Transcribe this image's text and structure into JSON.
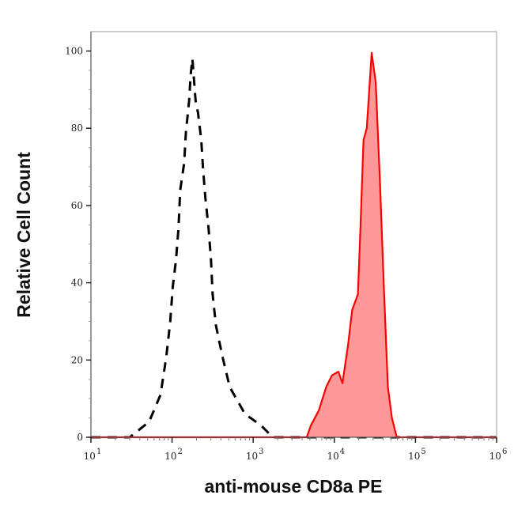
{
  "chart_data": {
    "type": "area",
    "title": "",
    "xlabel": "anti-mouse CD8a PE",
    "ylabel": "Relative Cell Count",
    "xscale": "log",
    "xlim": [
      10,
      1000000
    ],
    "ylim": [
      0,
      100
    ],
    "x_ticks": [
      {
        "base": "10",
        "exp": "1"
      },
      {
        "base": "10",
        "exp": "2"
      },
      {
        "base": "10",
        "exp": "3"
      },
      {
        "base": "10",
        "exp": "4"
      },
      {
        "base": "10",
        "exp": "5"
      },
      {
        "base": "10",
        "exp": "6"
      }
    ],
    "y_ticks": [
      "0",
      "20",
      "40",
      "60",
      "80",
      "100"
    ],
    "grid": false,
    "series": [
      {
        "style": "dashed-line",
        "color": "#000000",
        "x": [
          10,
          30,
          52,
          72,
          85,
          95,
          102,
          112,
          120,
          126,
          141,
          148,
          162,
          170,
          178,
          195,
          209,
          229,
          240,
          257,
          282,
          302,
          316,
          347,
          417,
          513,
          794,
          1259,
          1738,
          1000000
        ],
        "y": [
          0,
          0,
          4,
          11,
          21,
          30,
          39,
          46,
          54,
          64,
          71,
          79,
          87,
          94,
          98,
          87,
          84,
          77,
          70,
          62,
          54,
          46,
          37,
          29,
          21,
          13,
          6,
          3,
          0,
          0
        ]
      },
      {
        "style": "filled-line",
        "color": "#ff0000",
        "fill": "#ff9999",
        "x": [
          10,
          4571,
          5129,
          6457,
          7943,
          9333,
          11220,
          12589,
          14791,
          16596,
          19498,
          20893,
          22909,
          25119,
          28840,
          32359,
          36308,
          40738,
          45709,
          51286,
          58884,
          1000000
        ],
        "y": [
          0,
          0,
          3,
          7,
          13,
          16,
          17,
          14,
          24,
          33,
          37,
          53,
          77,
          80,
          99.5,
          92,
          67,
          39,
          13,
          5,
          0,
          0
        ]
      }
    ]
  }
}
